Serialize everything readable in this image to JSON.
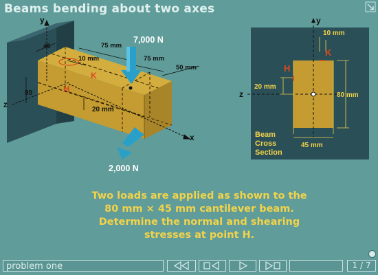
{
  "window": {
    "title": "Beams bending about two axes"
  },
  "figure": {
    "load_vertical": "7,000 N",
    "load_horizontal": "2,000 N",
    "axis_y": "y",
    "axis_z": "z",
    "axis_x": "x",
    "dim_45": "45",
    "dim_80": "80",
    "dim_75_top": "75 mm",
    "dim_75_side": "75 mm",
    "dim_10": "10 mm",
    "dim_50": "50 mm",
    "dim_20": "20 mm",
    "point_k": "K",
    "point_h": "H"
  },
  "cross_section": {
    "axis_y": "y",
    "axis_z": "z",
    "dim_10": "10 mm",
    "dim_20": "20 mm",
    "dim_80": "80 mm",
    "dim_45": "45 mm",
    "point_k": "K",
    "point_h": "H",
    "label_line1": "Beam",
    "label_line2": "Cross",
    "label_line3": "Section"
  },
  "problem": {
    "line1": "Two loads are applied as shown to the",
    "line2": "80 mm × 45 mm cantilever beam.",
    "line3": "Determine the normal and shearing",
    "line4": "stresses at point H."
  },
  "nav": {
    "section_label": "problem one",
    "page_indicator": "1 / 7"
  },
  "colors": {
    "background": "#5f9c9a",
    "beam": "#c9a43a",
    "accent_yellow": "#f2d34a",
    "point_red": "#d94a1e",
    "arrow_blue": "#2aa0c8"
  }
}
